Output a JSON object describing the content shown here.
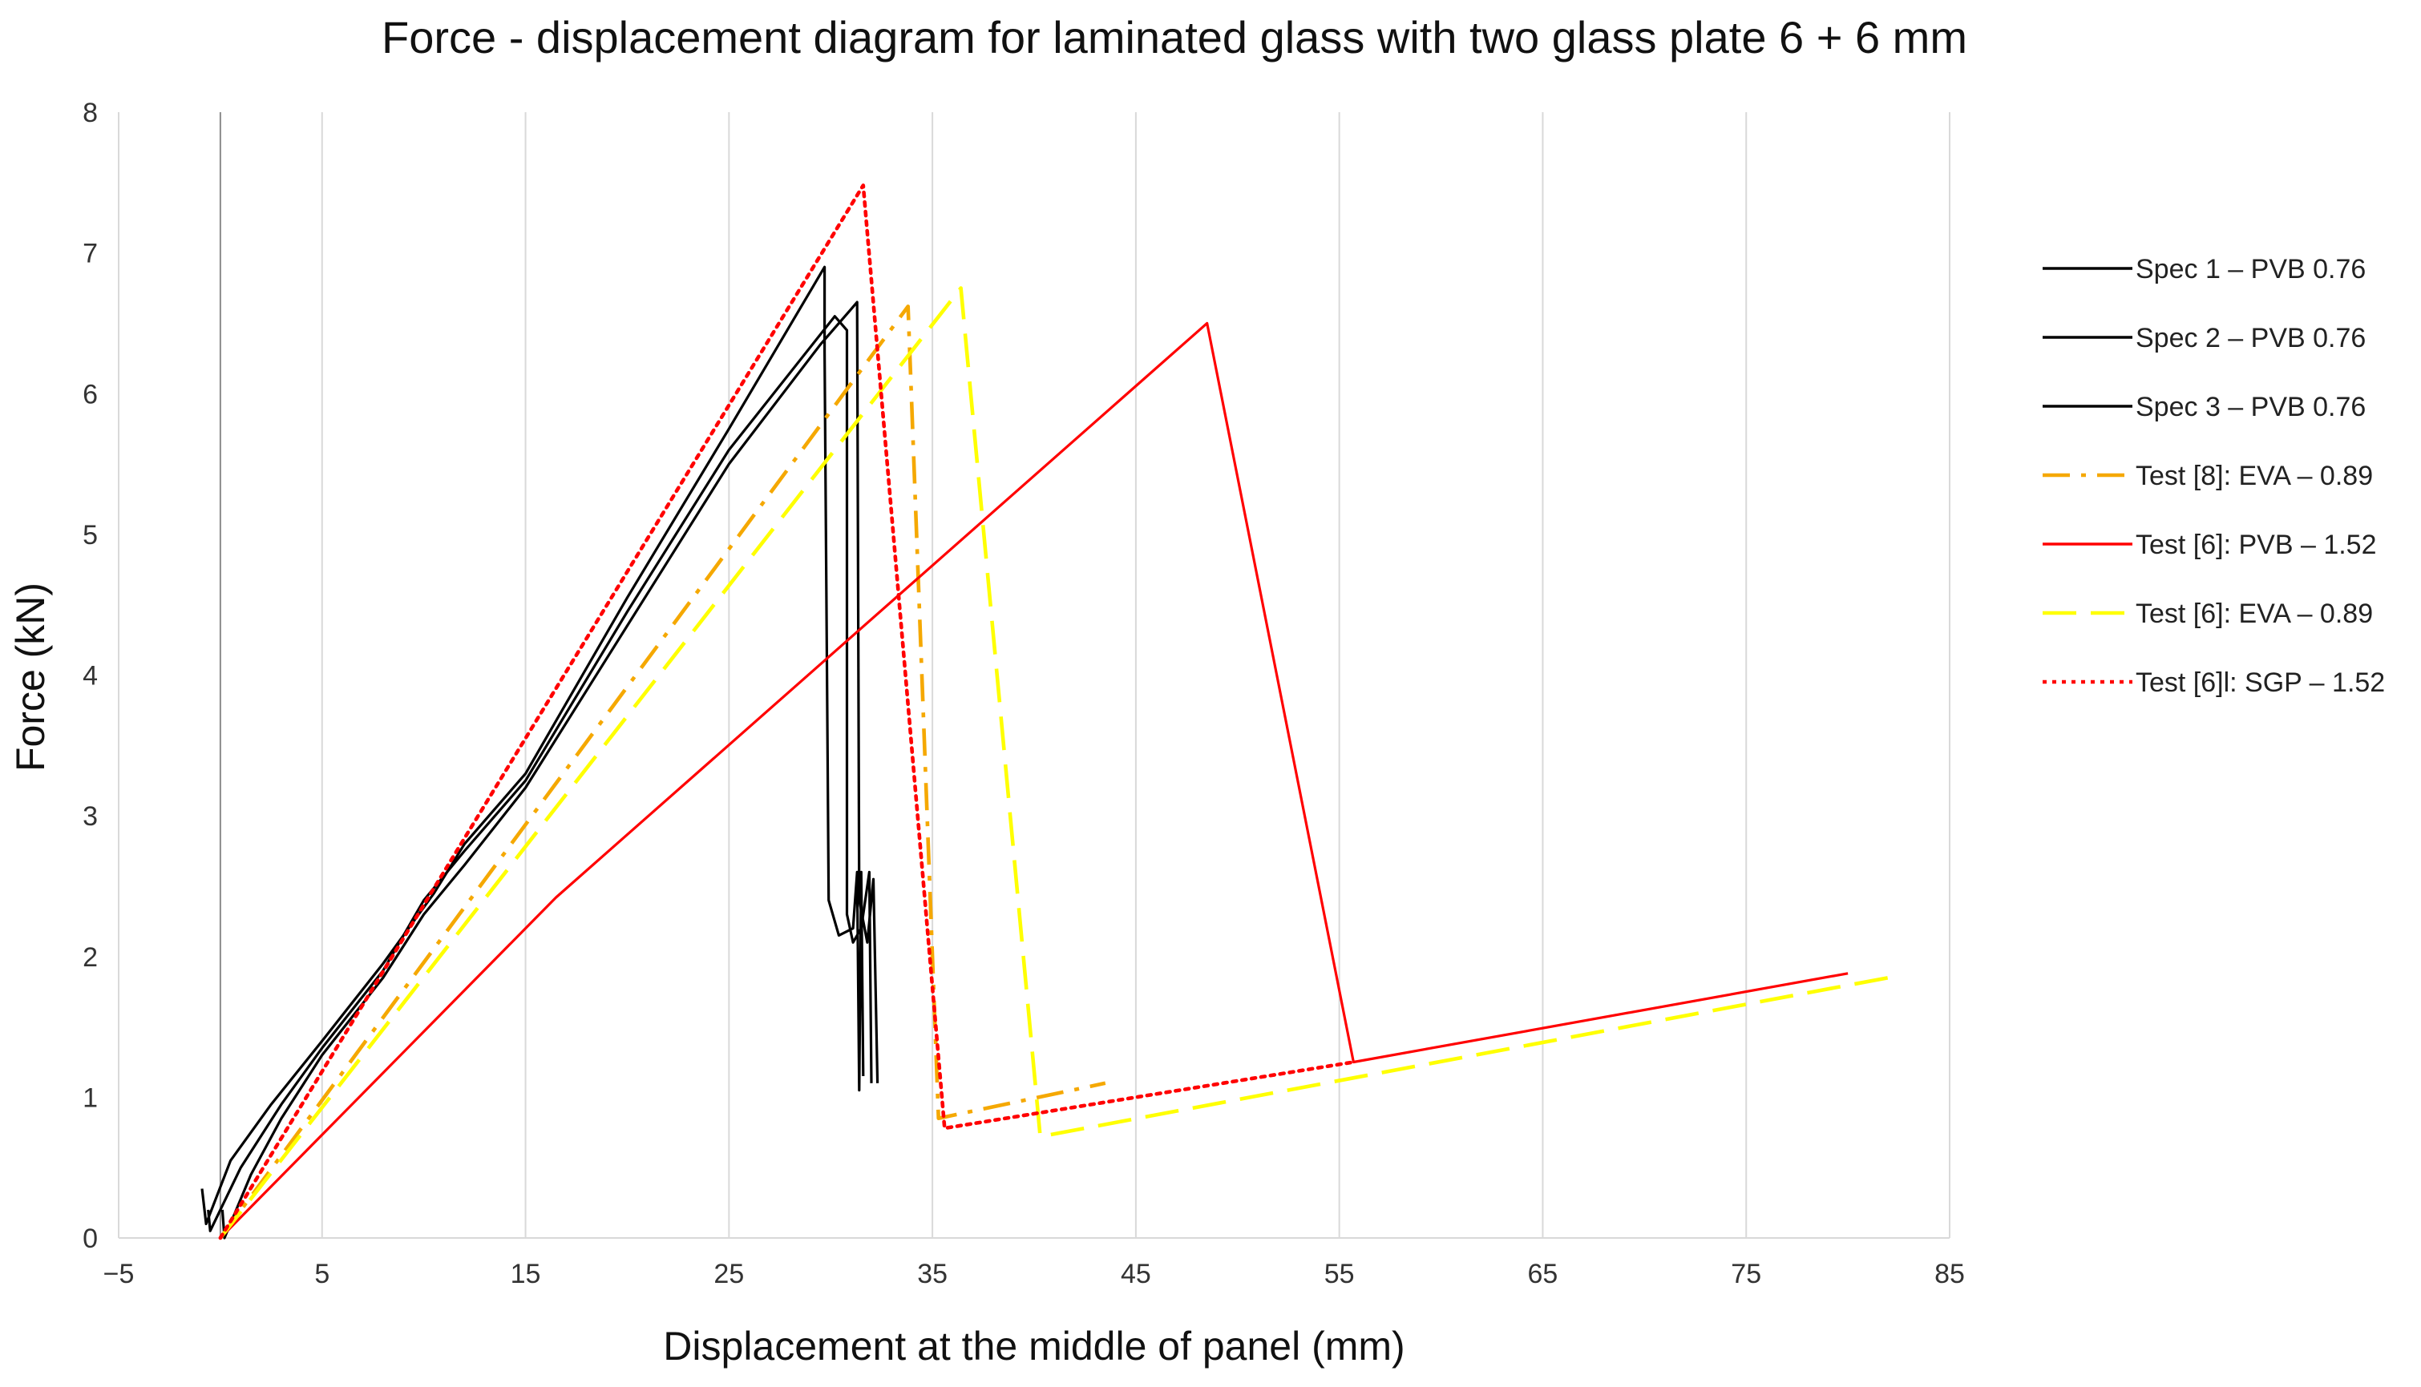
{
  "chart_data": {
    "type": "line",
    "title": "Force - displacement diagram for laminated glass with two glass plate 6 + 6 mm",
    "xlabel": "Displacement  at the middle  of panel (mm)",
    "ylabel": "Force (kN)",
    "xlim": [
      -5,
      85
    ],
    "ylim": [
      0,
      8
    ],
    "x_ticks": [
      -5,
      5,
      15,
      25,
      35,
      45,
      55,
      65,
      75,
      85
    ],
    "x_tick_labels": [
      "−5",
      "5",
      "15",
      "25",
      "35",
      "45",
      "55",
      "65",
      "75",
      "85"
    ],
    "y_ticks": [
      0,
      1,
      2,
      3,
      4,
      5,
      6,
      7,
      8
    ],
    "y_tick_labels": [
      "0",
      "1",
      "2",
      "3",
      "4",
      "5",
      "6",
      "7",
      "8"
    ],
    "grid": "vertical",
    "legend_position": "right",
    "series": [
      {
        "name": "Spec 1 – PVB 0.76",
        "color": "#000000",
        "style": "solid",
        "points": [
          [
            -0.9,
            0.35
          ],
          [
            -0.7,
            0.1
          ],
          [
            0.5,
            0.55
          ],
          [
            2.5,
            0.95
          ],
          [
            5,
            1.4
          ],
          [
            8,
            1.95
          ],
          [
            10.5,
            2.45
          ],
          [
            12,
            2.8
          ],
          [
            15,
            3.3
          ],
          [
            20,
            4.55
          ],
          [
            25,
            5.75
          ],
          [
            29.7,
            6.9
          ],
          [
            29.7,
            6.3
          ],
          [
            29.9,
            2.4
          ],
          [
            30.4,
            2.15
          ],
          [
            31.1,
            2.2
          ],
          [
            31.3,
            2.6
          ],
          [
            31.4,
            1.05
          ],
          [
            31.5,
            2.6
          ],
          [
            31.6,
            1.15
          ]
        ]
      },
      {
        "name": "Spec 2 – PVB 0.76",
        "color": "#000000",
        "style": "solid",
        "points": [
          [
            -0.6,
            0.2
          ],
          [
            -0.5,
            0.05
          ],
          [
            1,
            0.5
          ],
          [
            3,
            0.95
          ],
          [
            5,
            1.35
          ],
          [
            8,
            1.9
          ],
          [
            10,
            2.4
          ],
          [
            12,
            2.75
          ],
          [
            15,
            3.25
          ],
          [
            20,
            4.45
          ],
          [
            25,
            5.6
          ],
          [
            30.2,
            6.55
          ],
          [
            30.8,
            6.45
          ],
          [
            30.8,
            2.3
          ],
          [
            31.1,
            2.1
          ],
          [
            31.5,
            2.2
          ],
          [
            31.9,
            2.6
          ],
          [
            32.0,
            1.1
          ]
        ]
      },
      {
        "name": "Spec 3 – PVB 0.76",
        "color": "#000000",
        "style": "solid",
        "points": [
          [
            0.1,
            0.2
          ],
          [
            0.2,
            0.0
          ],
          [
            1.5,
            0.45
          ],
          [
            3,
            0.85
          ],
          [
            5,
            1.3
          ],
          [
            8,
            1.85
          ],
          [
            10,
            2.3
          ],
          [
            12,
            2.65
          ],
          [
            15,
            3.2
          ],
          [
            20,
            4.35
          ],
          [
            25,
            5.5
          ],
          [
            29.5,
            6.35
          ],
          [
            31.0,
            6.6
          ],
          [
            31.3,
            6.65
          ],
          [
            31.4,
            2.4
          ],
          [
            31.8,
            2.1
          ],
          [
            32.1,
            2.55
          ],
          [
            32.3,
            1.1
          ]
        ]
      },
      {
        "name": "Test [8]: EVA – 0.89",
        "color": "#F5A800",
        "style": "dashdot",
        "points": [
          [
            0,
            0
          ],
          [
            33.8,
            6.62
          ],
          [
            35.3,
            0.85
          ],
          [
            43.5,
            1.1
          ]
        ]
      },
      {
        "name": "Test [6]: PVB – 1.52",
        "color": "#FF0000",
        "style": "solid",
        "points": [
          [
            0,
            0
          ],
          [
            16.5,
            2.42
          ],
          [
            48.5,
            6.5
          ],
          [
            55.7,
            1.25
          ],
          [
            80,
            1.88
          ]
        ]
      },
      {
        "name": "Test [6]: EVA – 0.89",
        "color": "#FFFF00",
        "style": "dashed",
        "points": [
          [
            0,
            0
          ],
          [
            36.4,
            6.75
          ],
          [
            40.3,
            0.72
          ],
          [
            82,
            1.85
          ]
        ]
      },
      {
        "name": "Test [6]l: SGP – 1.52",
        "color": "#FF0000",
        "style": "dotted",
        "points": [
          [
            0,
            0
          ],
          [
            31.6,
            7.48
          ],
          [
            35.6,
            0.78
          ],
          [
            55.7,
            1.25
          ]
        ]
      }
    ]
  }
}
